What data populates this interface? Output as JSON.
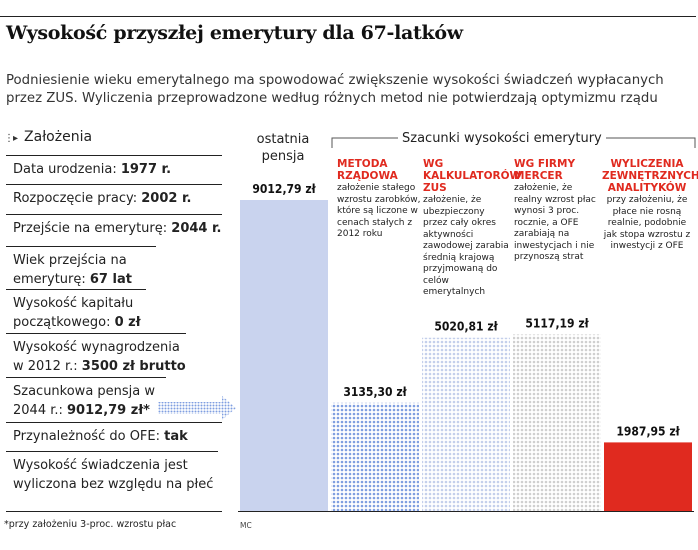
{
  "title": "Wysokość przyszłej emerytury dla 67-latków",
  "subtitle": "Podniesienie wieku emerytalnego ma spowodować zwiększenie wysokości świadczeń wypłacanych przez ZUS. Wyliczenia przeprowadzone według różnych metod nie potwierdzają optymizmu rządu",
  "assumptions": {
    "heading": "Założenia",
    "rows": [
      {
        "label": "Data urodzenia: ",
        "value": "1977 r."
      },
      {
        "label": "Rozpoczęcie pracy: ",
        "value": "2002 r."
      },
      {
        "label": "Przejście na emeryturę: ",
        "value": "2044 r."
      },
      {
        "label": "Wiek przejścia na emeryturę: ",
        "value": "67 lat"
      },
      {
        "label": "Wysokość kapitału początkowego: ",
        "value": "0 zł"
      },
      {
        "label": "Wysokość wynagrodzenia w 2012 r.: ",
        "value": "3500 zł brutto"
      },
      {
        "label": "Szacunkowa pensja w 2044 r.: ",
        "value": "9012,79 zł*"
      },
      {
        "label": "Przynależność do OFE: ",
        "value": "tak"
      },
      {
        "label": "Wysokość świadczenia jest wyliczona bez względu na płeć",
        "value": ""
      }
    ]
  },
  "footnote": "*przy założeniu 3-proc. wzrostu płac",
  "credit": "MC",
  "colors": {
    "accent_red": "#e02a1f",
    "bar_blue": "#7f9ee0",
    "bar_light": "#c9d3ee",
    "bar_grey": "#d7d7d7"
  },
  "chart_data": {
    "type": "bar",
    "column_header": "ostatnia pensja",
    "group_label": "Szacunki wysokości emerytury",
    "categories": [
      "ostatnia pensja",
      "METODA RZĄDOWA",
      "WG KALKULATORÓW ZUS",
      "WG FIRMY MERCER",
      "WYLICZENIA ZEWNĘTRZNYCH ANALITYKÓW"
    ],
    "values": [
      9012.79,
      3135.3,
      5020.81,
      5117.19,
      1987.95
    ],
    "value_labels": [
      "9012,79 zł",
      "3135,30 zł",
      "5020,81 zł",
      "5117,19 zł",
      "1987,95 zł"
    ],
    "fill_styles": [
      "solid-light",
      "dotted-blue",
      "dotted-light",
      "dotted-grey",
      "solid-red"
    ],
    "methods": [
      {
        "title": "METODA RZĄDOWA",
        "desc": "założenie stałego wzrostu zarobków, które są liczone w cenach stałych z 2012 roku"
      },
      {
        "title": "WG KALKULATORÓW ZUS",
        "desc": "założenie, że ubezpieczony przez cały okres aktywności zawodowej zarabia średnią krajową przyjmowaną do celów emerytalnych"
      },
      {
        "title": "WG FIRMY MERCER",
        "desc": "założenie, że realny wzrost płac wynosi 3 proc. rocznie, a OFE zarabiają na inwestycjach i nie przynoszą strat"
      },
      {
        "title": "WYLICZENIA ZEWNĘTRZNYCH ANALITYKÓW",
        "desc": "przy założeniu, że płace nie rosną realnie, podobnie jak stopa wzrostu z inwestycji z OFE"
      }
    ],
    "ylim": [
      0,
      9012.79
    ],
    "grid": false,
    "legend": "none"
  }
}
